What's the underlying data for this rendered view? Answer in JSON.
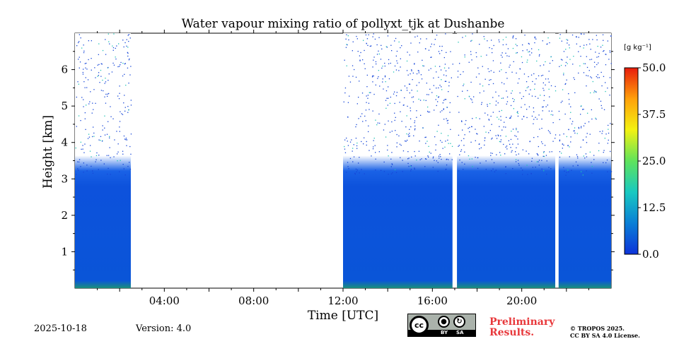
{
  "chart_data": {
    "type": "heatmap",
    "title": "Water vapour mixing ratio of pollyxt_tjk at Dushanbe",
    "xlabel": "Time [UTC]",
    "ylabel": "Height [km]",
    "xlim_hours": [
      0,
      24
    ],
    "ylim_km": [
      0,
      7
    ],
    "xticks": [
      {
        "hour": 4,
        "label": "04:00"
      },
      {
        "hour": 8,
        "label": "08:00"
      },
      {
        "hour": 12,
        "label": "12:00"
      },
      {
        "hour": 16,
        "label": "16:00"
      },
      {
        "hour": 20,
        "label": "20:00"
      }
    ],
    "yticks": [
      {
        "km": 1,
        "label": "1"
      },
      {
        "km": 2,
        "label": "2"
      },
      {
        "km": 3,
        "label": "3"
      },
      {
        "km": 4,
        "label": "4"
      },
      {
        "km": 5,
        "label": "5"
      },
      {
        "km": 6,
        "label": "6"
      }
    ],
    "data_segments_hours": [
      [
        0.0,
        2.5
      ],
      [
        12.0,
        16.9
      ],
      [
        17.1,
        21.5
      ],
      [
        21.65,
        24.0
      ]
    ],
    "approx_layer_top_km": 3.5,
    "colorbar": {
      "units": "[g kg⁻¹]",
      "min": 0.0,
      "max": 50.0,
      "ticks": [
        {
          "value": 0.0,
          "label": "0.0"
        },
        {
          "value": 12.5,
          "label": "12.5"
        },
        {
          "value": 25.0,
          "label": "25.0"
        },
        {
          "value": 37.5,
          "label": "37.5"
        },
        {
          "value": 50.0,
          "label": "50.0"
        }
      ],
      "colors": [
        "#0d33d9",
        "#0a7fd6",
        "#18c9c1",
        "#5fe35c",
        "#f3f211",
        "#ffa10a",
        "#e81c0c"
      ]
    }
  },
  "footer": {
    "date": "2025-10-18",
    "version": "Version: 4.0",
    "preliminary_line1": "Preliminary",
    "preliminary_line2": "Results.",
    "copyright_line1": "© TROPOS 2025.",
    "copyright_line2": "CC BY SA 4.0 License."
  },
  "license_badge": {
    "cc": "cc",
    "by": "BY",
    "sa": "SA"
  }
}
